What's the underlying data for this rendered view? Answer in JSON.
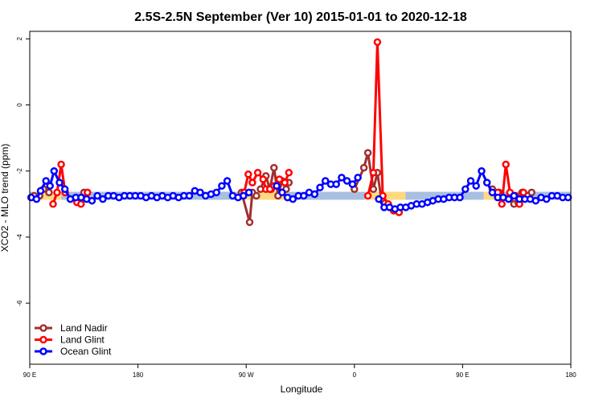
{
  "chart_data": {
    "type": "line",
    "title": "2.5S-2.5N September (Ver 10)   2015-01-01 to 2020-12-18",
    "xlabel": "Longitude",
    "ylabel": "XCO2 - MLO trend (ppm)",
    "xlim": [
      90,
      450
    ],
    "ylim": [
      -8,
      2.2
    ],
    "x_ticks": [
      {
        "value": 90,
        "label": "90 E"
      },
      {
        "value": 162,
        "label": "180"
      },
      {
        "value": 234,
        "label": "90 W"
      },
      {
        "value": 306,
        "label": "0"
      },
      {
        "value": 378,
        "label": "90 E"
      },
      {
        "value": 450,
        "label": "180"
      }
    ],
    "y_ticks": [
      {
        "value": 2,
        "label": "2"
      },
      {
        "value": 0,
        "label": "0"
      },
      {
        "value": -2,
        "label": "-2"
      },
      {
        "value": -4,
        "label": "-4"
      },
      {
        "value": -6,
        "label": "-6"
      }
    ],
    "legend_position": "bottom-left",
    "background_bands": [
      {
        "x": [
          90,
          450
        ],
        "y": -2.75,
        "color": "#a8bfe0"
      },
      {
        "x": [
          94,
          111
        ],
        "y": -2.75,
        "color": "#ffd980"
      },
      {
        "x": [
          231,
          262
        ],
        "y": -2.75,
        "color": "#ffd980"
      },
      {
        "x": [
          313,
          340
        ],
        "y": -2.75,
        "color": "#ffd980"
      },
      {
        "x": [
          392,
          404
        ],
        "y": -2.75,
        "color": "#ffd980"
      }
    ],
    "series": [
      {
        "name": "Land Nadir",
        "color": "#a0302e",
        "segments": [
          {
            "x": [
              92.9,
              96.5,
              99.2,
              102.8
            ],
            "y": [
              -2.75,
              -2.75,
              -2.55,
              -2.65
            ]
          },
          {
            "x": [
              123.4,
              126.1
            ],
            "y": [
              -2.85,
              -2.65
            ]
          },
          {
            "x": [
              230.9,
              236.3,
              238.1,
              240.8
            ],
            "y": [
              -2.65,
              -3.55,
              -2.65,
              -2.75
            ]
          },
          {
            "x": [
              243.5,
              247.1,
              249.8,
              252.5,
              255.2,
              257.9,
              260.6,
              262.4
            ],
            "y": [
              -2.55,
              -2.15,
              -2.55,
              -1.9,
              -2.75,
              -2.3,
              -2.55,
              -2.35
            ]
          },
          {
            "x": [
              306,
              312.3,
              315,
              318.6,
              321.3,
              324
            ],
            "y": [
              -2.55,
              -1.9,
              -1.45,
              -2.55,
              -2.05,
              -2.85
            ]
          },
          {
            "x": [
              397.8,
              402.3
            ],
            "y": [
              -2.55,
              -2.65
            ]
          },
          {
            "x": [
              409.5,
              412.2,
              414.9,
              417.6,
              421.2,
              423.9
            ],
            "y": [
              -2.75,
              -3.0,
              -2.95,
              -2.65,
              -2.75,
              -2.65
            ]
          }
        ]
      },
      {
        "name": "Land Glint",
        "color": "#ff0000",
        "segments": [
          {
            "x": [
              105.5,
              108.2,
              110.9,
              113.6
            ],
            "y": [
              -3.0,
              -2.65,
              -1.8,
              -2.65
            ]
          },
          {
            "x": [
              121.4,
              124.1,
              128.4
            ],
            "y": [
              -2.95,
              -3.0,
              -2.65
            ]
          },
          {
            "x": [
              232.7,
              235.4,
              238.1,
              241.7,
              245.3,
              247.1,
              250.7
            ],
            "y": [
              -2.65,
              -2.1,
              -2.35,
              -2.05,
              -2.25,
              -2.55,
              -2.55
            ]
          },
          {
            "x": [
              249.8,
              252.5,
              256.1,
              259.7,
              262.4
            ],
            "y": [
              -2.55,
              -2.45,
              -2.25,
              -2.35,
              -2.05
            ]
          },
          {
            "x": [
              315,
              318.6,
              321.3,
              324.9,
              328.5,
              332.1,
              335.7
            ],
            "y": [
              -2.75,
              -2.05,
              1.9,
              -2.75,
              -3.0,
              -3.2,
              -3.25
            ]
          },
          {
            "x": [
              401.4,
              404.1,
              406.8,
              409.5,
              413.1,
              415.8,
              418.5
            ],
            "y": [
              -2.65,
              -3.0,
              -1.8,
              -2.65,
              -2.75,
              -3.0,
              -2.65
            ]
          }
        ]
      },
      {
        "name": "Ocean Glint",
        "color": "#0000ff",
        "segments": [
          {
            "x": [
              90.9,
              94.5,
              97.2,
              100.8,
              103.5,
              106.2,
              109.8,
              113.4,
              117,
              120.6,
              124.2,
              127.8,
              131.4,
              135,
              138.6,
              142.2,
              145.8,
              149.4,
              153,
              156.6,
              160.2,
              163.8,
              167.4,
              171,
              174.6,
              178.2,
              181.8,
              185.4,
              189,
              192.6,
              196.2,
              199.8,
              203.4,
              207,
              210.6,
              214.2,
              217.8,
              221.4,
              225,
              228.6,
              232.2,
              235.8
            ],
            "y": [
              -2.8,
              -2.85,
              -2.6,
              -2.3,
              -2.45,
              -2.0,
              -2.35,
              -2.55,
              -2.85,
              -2.8,
              -2.8,
              -2.85,
              -2.9,
              -2.75,
              -2.85,
              -2.75,
              -2.75,
              -2.8,
              -2.75,
              -2.75,
              -2.75,
              -2.75,
              -2.8,
              -2.75,
              -2.8,
              -2.75,
              -2.8,
              -2.75,
              -2.8,
              -2.75,
              -2.75,
              -2.6,
              -2.65,
              -2.75,
              -2.7,
              -2.65,
              -2.45,
              -2.3,
              -2.75,
              -2.8,
              -2.75,
              -2.65
            ]
          },
          {
            "x": [
              254.3,
              257.9,
              261.5,
              265.1,
              268.7,
              272.3,
              275.9,
              279.5,
              283.1,
              286.7,
              290.3,
              293.9,
              297.5,
              301.1,
              304.7,
              308.3
            ],
            "y": [
              -2.45,
              -2.65,
              -2.8,
              -2.85,
              -2.75,
              -2.75,
              -2.65,
              -2.7,
              -2.5,
              -2.3,
              -2.4,
              -2.4,
              -2.2,
              -2.3,
              -2.4,
              -2.2
            ]
          },
          {
            "x": [
              322.2,
              325.8,
              329.4,
              333,
              336.6,
              340.2,
              343.8,
              347.4,
              351,
              354.6,
              358.2,
              361.8,
              365.4,
              369,
              372.6,
              376.2,
              379.8,
              383.4,
              387,
              390.6,
              394.2,
              397.8,
              401.4,
              405,
              408.6,
              412.2,
              415.8,
              419.4,
              423,
              426.6,
              430.2,
              433.8,
              437.4,
              441,
              444.6,
              448.2
            ],
            "y": [
              -2.85,
              -3.1,
              -3.1,
              -3.15,
              -3.1,
              -3.1,
              -3.05,
              -3.0,
              -3.0,
              -2.95,
              -2.9,
              -2.85,
              -2.85,
              -2.8,
              -2.8,
              -2.8,
              -2.55,
              -2.3,
              -2.45,
              -2.0,
              -2.35,
              -2.65,
              -2.8,
              -2.8,
              -2.85,
              -2.75,
              -2.85,
              -2.85,
              -2.85,
              -2.9,
              -2.8,
              -2.85,
              -2.75,
              -2.75,
              -2.8,
              -2.8
            ]
          }
        ]
      }
    ]
  }
}
